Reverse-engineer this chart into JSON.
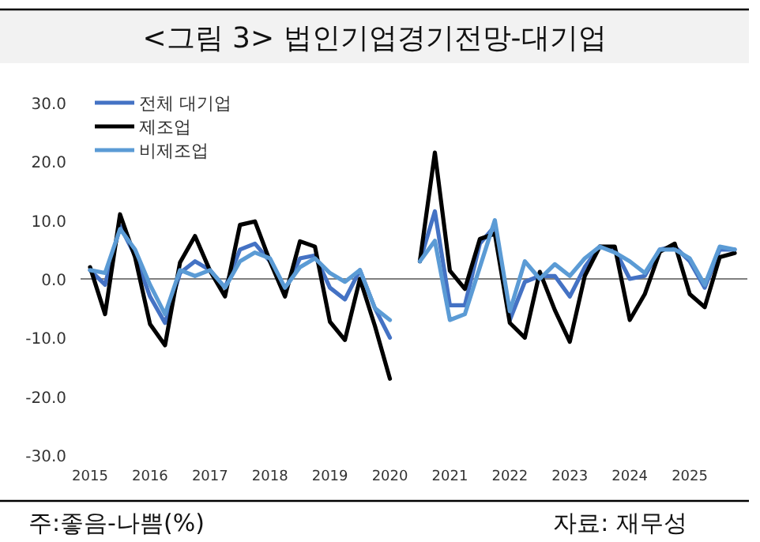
{
  "chart_data": {
    "type": "line",
    "title": "<그림 3> 법인기업경기전망-대기업",
    "categories": [
      "2015",
      null,
      null,
      null,
      "2016",
      null,
      null,
      null,
      "2017",
      null,
      null,
      null,
      "2018",
      null,
      null,
      null,
      "2019",
      null,
      null,
      null,
      "2020",
      null,
      null,
      null,
      "2021",
      null,
      null,
      null,
      "2022",
      null,
      null,
      null,
      "2023",
      null,
      null,
      null,
      "2024",
      null,
      null,
      null,
      "2025",
      null,
      null,
      null
    ],
    "series": [
      {
        "name": "전체 대기업",
        "color": "#4472c4",
        "values": [
          1.5,
          -1,
          9,
          4,
          -3,
          -7.5,
          1,
          3,
          1.5,
          -1.5,
          5,
          6,
          3,
          -2,
          3.5,
          4,
          -1.5,
          -3.5,
          1.5,
          -5,
          -10,
          null,
          3,
          11.5,
          -4.5,
          -4.5,
          6,
          9,
          -7,
          -0.5,
          0.5,
          0.5,
          -3,
          2,
          5.5,
          5,
          0,
          0.5,
          5,
          5.5,
          3,
          -1.5,
          5,
          5
        ]
      },
      {
        "name": "제조업",
        "color": "#000000",
        "values": [
          2,
          -6,
          11,
          3.7,
          -7.7,
          -11.3,
          2.8,
          7.3,
          1.4,
          -3,
          9.2,
          9.8,
          3,
          -3,
          6.4,
          5.5,
          -7.3,
          -10.4,
          0,
          -8,
          -17,
          null,
          3,
          21.5,
          1.4,
          -1.7,
          6.8,
          7.7,
          -7.5,
          -10,
          1.2,
          -5.3,
          -10.7,
          0.5,
          5.5,
          5.5,
          -7,
          -2.6,
          4.6,
          6,
          -2.6,
          -4.8,
          3.7,
          4.4
        ]
      },
      {
        "name": "비제조업",
        "color": "#5b9bd5",
        "values": [
          1.5,
          1,
          8.5,
          5,
          -1,
          -6,
          1.5,
          0.5,
          1.5,
          -1.5,
          3,
          4.5,
          3.5,
          -1.5,
          2,
          3.5,
          1,
          -0.5,
          1.5,
          -5,
          -7,
          null,
          3,
          6.5,
          -7,
          -6,
          2,
          10,
          -5.5,
          3,
          0,
          2.5,
          0.5,
          3.5,
          5.5,
          4.5,
          3,
          1,
          5,
          5,
          3.5,
          -1,
          5.5,
          5
        ]
      }
    ],
    "ylim": [
      -30,
      30
    ],
    "yticks": [
      {
        "value": -30,
        "label": "-30.0"
      },
      {
        "value": -20,
        "label": "-20.0"
      },
      {
        "value": -10,
        "label": "-10.0"
      },
      {
        "value": 0,
        "label": "0.0"
      },
      {
        "value": 10,
        "label": "10.0"
      },
      {
        "value": 20,
        "label": "20.0"
      },
      {
        "value": 30,
        "label": "30.0"
      }
    ],
    "legend": "top left",
    "annotations": [
      "주:좋음-나쁨(%)",
      "자료: 재무성"
    ]
  }
}
